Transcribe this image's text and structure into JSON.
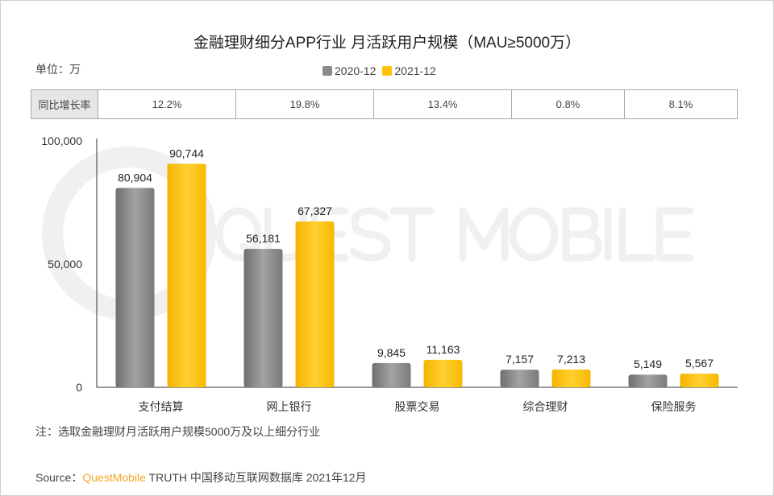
{
  "chart_data": {
    "type": "bar",
    "title": "金融理财细分APP行业 月活跃用户规模（MAU≥5000万）",
    "unit_label": "单位：万",
    "categories": [
      "支付结算",
      "网上银行",
      "股票交易",
      "综合理财",
      "保险服务"
    ],
    "series": [
      {
        "name": "2020-12",
        "color": "#8a8a8a",
        "values": [
          80904,
          56181,
          9845,
          7157,
          5149
        ],
        "labels": [
          "80,904",
          "56,181",
          "9,845",
          "7,157",
          "5,149"
        ]
      },
      {
        "name": "2021-12",
        "color": "#ffc107",
        "values": [
          90744,
          67327,
          11163,
          7213,
          5567
        ],
        "labels": [
          "90,744",
          "67,327",
          "11,163",
          "7,213",
          "5,567"
        ]
      }
    ],
    "ylim": [
      0,
      100000
    ],
    "yticks": [
      "0",
      "50,000",
      "100,000"
    ],
    "ytick_values": [
      0,
      50000,
      100000
    ],
    "legend_position": "top-center",
    "yoy_row": {
      "header": "同比增长率",
      "values": [
        "12.2%",
        "19.8%",
        "13.4%",
        "0.8%",
        "8.1%"
      ]
    }
  },
  "watermark": "QUEST MOBILE",
  "note": "注：选取金融理财月活跃用户规模5000万及以上细分行业",
  "source": {
    "prefix": "Source：",
    "brand": "QuestMobile",
    "rest": " TRUTH 中国移动互联网数据库 2021年12月"
  }
}
